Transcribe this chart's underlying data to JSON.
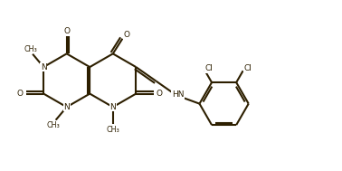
{
  "bg": "#ffffff",
  "bc": "#2d1f00",
  "lw": 1.5,
  "fs": 6.5,
  "fs_small": 5.8,
  "xlim": [
    0,
    10
  ],
  "ylim": [
    0,
    5
  ],
  "r": 0.78
}
